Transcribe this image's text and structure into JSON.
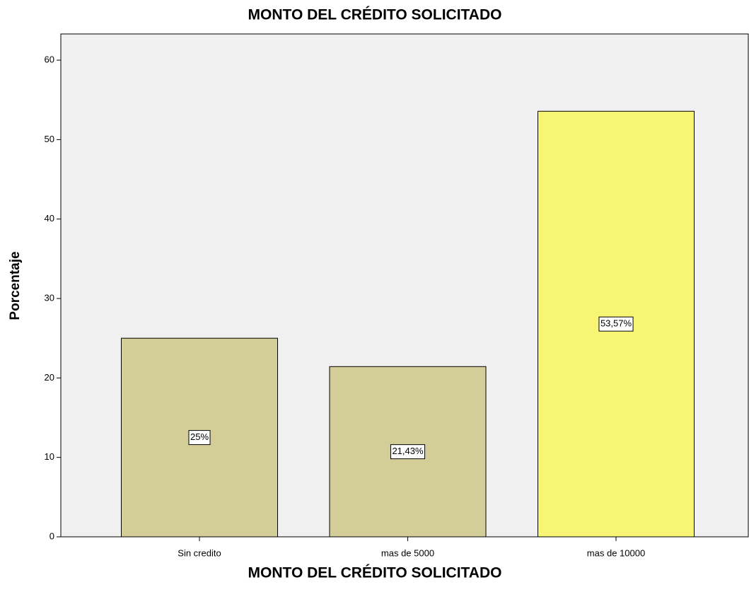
{
  "chart_data": {
    "type": "bar",
    "title": "MONTO DEL CRÉDITO SOLICITADO",
    "x_label": "MONTO DEL CRÉDITO SOLICITADO",
    "y_label": "Porcentaje",
    "categories": [
      "Sin credito",
      "mas de 5000",
      "mas de 10000"
    ],
    "values": [
      25,
      21.43,
      53.57
    ],
    "value_labels": [
      "25%",
      "21,43%",
      "53,57%"
    ],
    "colors": [
      "#d3ce98",
      "#d3ce98",
      "#f8f575"
    ],
    "ylim": [
      0,
      63.3
    ],
    "yticks": [
      0,
      10,
      20,
      30,
      40,
      50,
      60
    ],
    "grid": false
  }
}
